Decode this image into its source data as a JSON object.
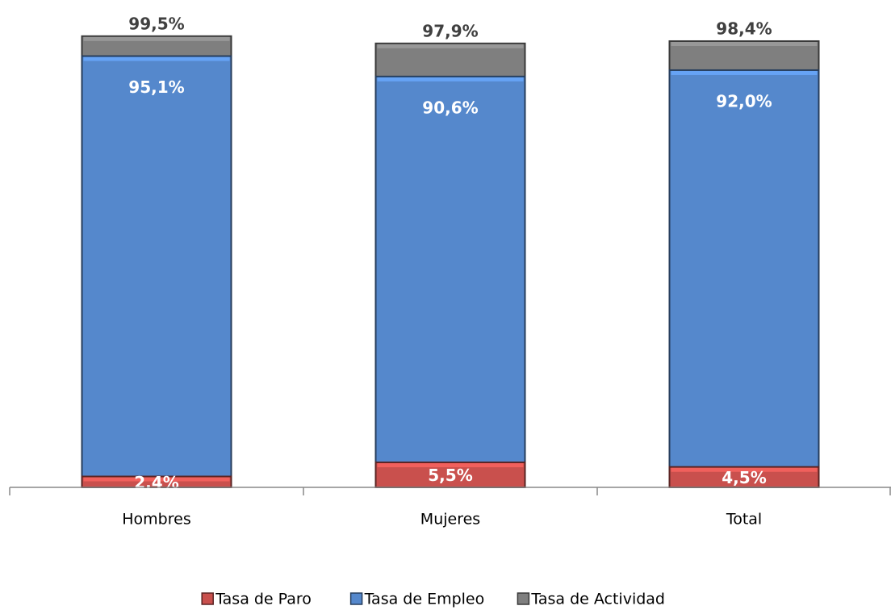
{
  "chart_data": {
    "type": "bar",
    "overlap": true,
    "categories": [
      "Hombres",
      "Mujeres",
      "Total"
    ],
    "series": [
      {
        "name": "Tasa de Actividad",
        "color": "#7f7f7f",
        "values": [
          99.5,
          97.9,
          98.4
        ],
        "value_labels": [
          "99,5%",
          "97,9%",
          "98,4%"
        ]
      },
      {
        "name": "Tasa de Empleo",
        "color": "#5588cc",
        "values": [
          95.1,
          90.6,
          92.0
        ],
        "value_labels": [
          "95,1%",
          "90,6%",
          "92,0%"
        ]
      },
      {
        "name": "Tasa de Paro",
        "color": "#c9504d",
        "values": [
          2.4,
          5.5,
          4.5
        ],
        "value_labels": [
          "2,4%",
          "5,5%",
          "4,5%"
        ]
      }
    ],
    "legend_order": [
      2,
      1,
      0
    ],
    "legend": "bottom",
    "ylim": [
      0,
      100
    ]
  }
}
